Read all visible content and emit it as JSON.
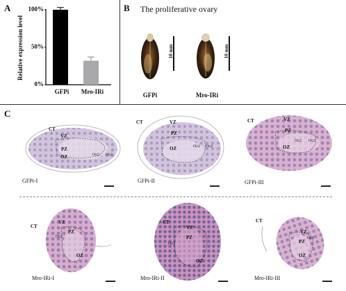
{
  "panelA": {
    "letter": "A",
    "ylabel": "Relative expression level",
    "yticks": [
      "100%",
      "50%",
      "0%"
    ],
    "chart_data": {
      "type": "bar",
      "categories": [
        "GFPi",
        "Mro-IRi"
      ],
      "values": [
        1.0,
        0.32
      ],
      "errors": [
        0.03,
        0.05
      ],
      "ylim": [
        0,
        1.0
      ],
      "ylabel": "Relative expression level",
      "colors": [
        "#000000",
        "#a9a9ad"
      ]
    }
  },
  "panelB": {
    "letter": "B",
    "title": "The proliferative ovary",
    "scale_label": "10 mm",
    "labels": [
      "GFPi",
      "Mro-IRi"
    ]
  },
  "panelC": {
    "letter": "C",
    "images": [
      {
        "label": "GFPi-I",
        "annos": [
          "CT",
          "VZ",
          "PZ",
          "OZ",
          "Oc2",
          "Oc2"
        ]
      },
      {
        "label": "GFPi-II",
        "annos": [
          "CT",
          "VZ",
          "PZ",
          "OZ",
          "Oc2",
          "Oc2"
        ]
      },
      {
        "label": "GFPi-III",
        "annos": [
          "CT",
          "VZ",
          "PZ",
          "OZ",
          "Oc2",
          "Oc2"
        ]
      },
      {
        "label": "Mro-IRi-I",
        "annos": [
          "CT",
          "VZ",
          "PZ",
          "Oc2",
          "OZ"
        ]
      },
      {
        "label": "Mro-IRi-II",
        "annos": [
          "CT",
          "VZ",
          "PZ",
          "Oc2",
          "OZ"
        ]
      },
      {
        "label": "Mro-IRi-III",
        "annos": [
          "CT",
          "VZ",
          "PZ",
          "Oc2",
          "OZ"
        ]
      }
    ]
  }
}
